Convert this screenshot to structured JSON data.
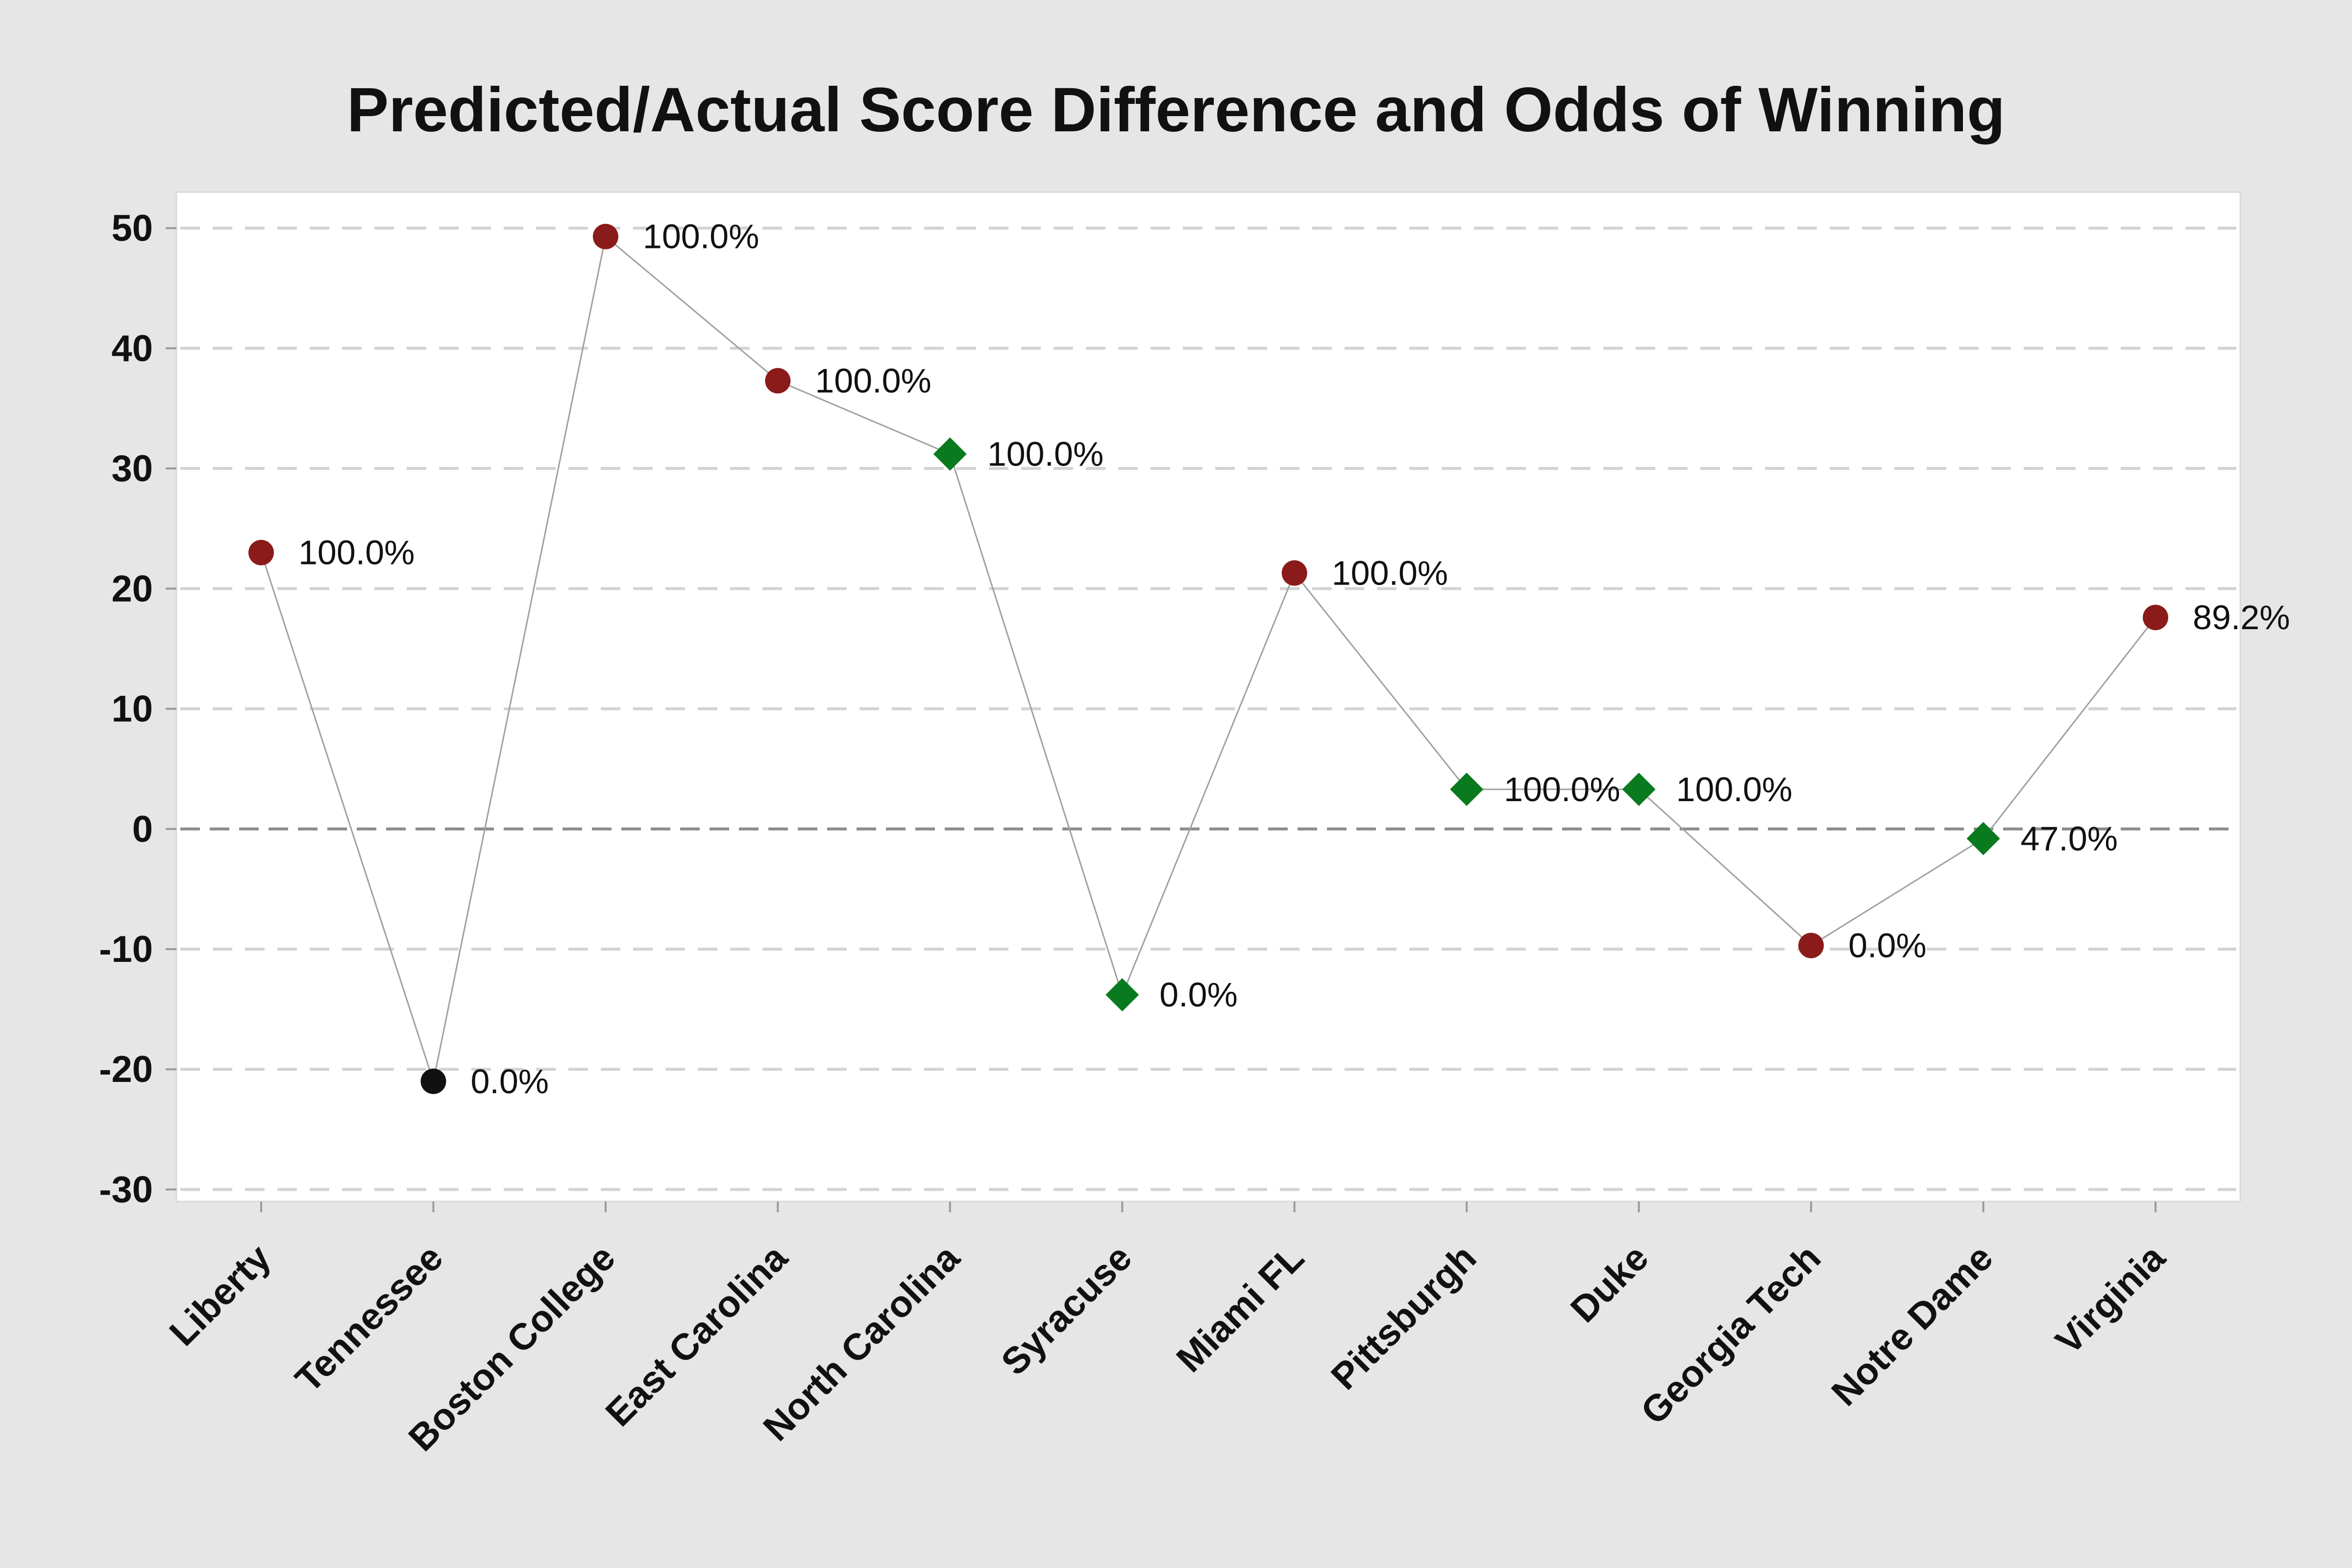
{
  "chart_data": {
    "type": "line",
    "title": "Predicted/Actual Score Difference and Odds of Winning",
    "xlabel": "",
    "ylabel": "",
    "ylim": [
      -31,
      53
    ],
    "y_ticks": [
      "50",
      "40",
      "30",
      "20",
      "10",
      "0",
      "-10",
      "-20",
      "-30"
    ],
    "y_tick_values": [
      50,
      40,
      30,
      20,
      10,
      0,
      -10,
      -20,
      -30
    ],
    "grid": true,
    "reference_line": 0,
    "categories": [
      "Liberty",
      "Tennessee",
      "Boston College",
      "East Carolina",
      "North Carolina",
      "Syracuse",
      "Miami FL",
      "Pittsburgh",
      "Duke",
      "Georgia Tech",
      "Notre Dame",
      "Virginia"
    ],
    "values": [
      23,
      -21,
      49.3,
      37.3,
      31.2,
      -13.8,
      21.3,
      3.3,
      3.3,
      -9.7,
      -0.8,
      17.6
    ],
    "odds_labels": [
      "100.0%",
      "0.0%",
      "100.0%",
      "100.0%",
      "100.0%",
      "0.0%",
      "100.0%",
      "100.0%",
      "100.0%",
      "0.0%",
      "47.0%",
      "89.2%"
    ],
    "markers": [
      "circle",
      "circle",
      "circle",
      "circle",
      "diamond",
      "diamond",
      "circle",
      "diamond",
      "diamond",
      "circle",
      "diamond",
      "circle"
    ],
    "marker_colors": [
      "#8b1a1a",
      "#111111",
      "#8b1a1a",
      "#8b1a1a",
      "#0a7a1e",
      "#0a7a1e",
      "#8b1a1a",
      "#0a7a1e",
      "#0a7a1e",
      "#8b1a1a",
      "#0a7a1e",
      "#8b1a1a"
    ],
    "line_color": "#a0a0a0",
    "grid_color": "#d3d3d3",
    "reference_line_color": "#8c8c8c"
  }
}
